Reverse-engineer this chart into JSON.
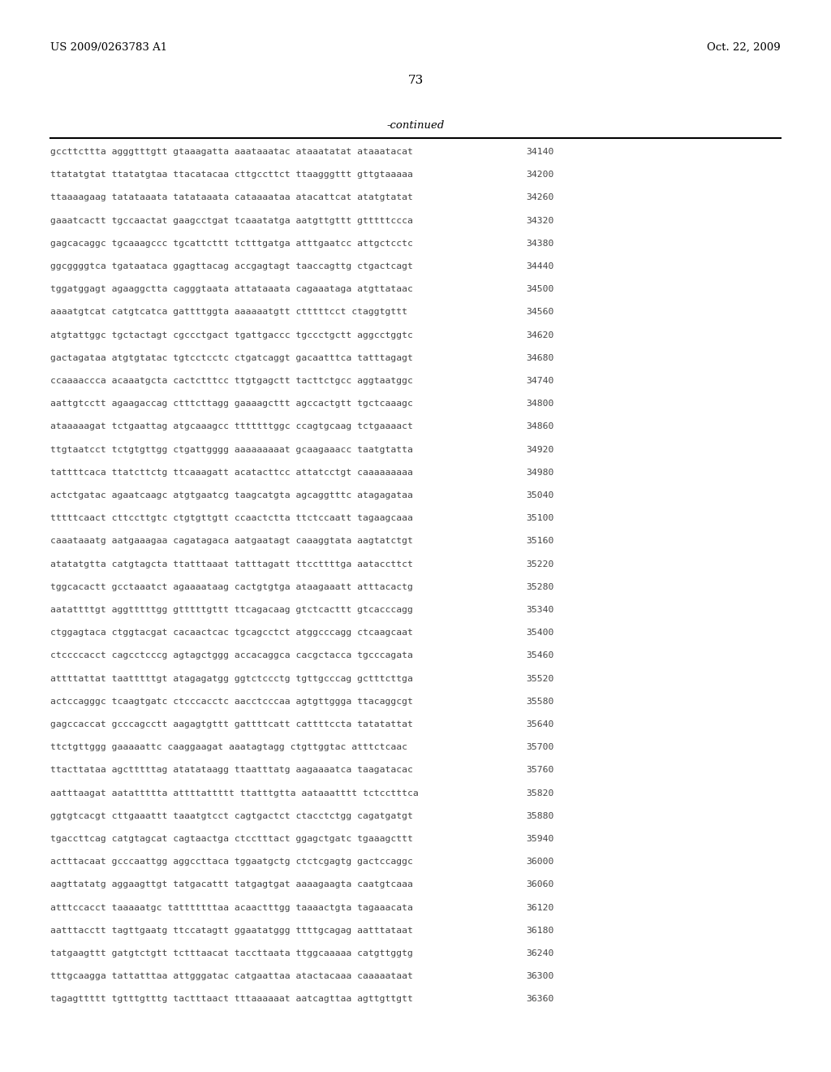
{
  "patent_number": "US 2009/0263783 A1",
  "date": "Oct. 22, 2009",
  "page_number": "73",
  "continued_label": "-continued",
  "background_color": "#ffffff",
  "text_color": "#000000",
  "sequence_color": "#444444",
  "sequence_lines": [
    [
      "gccttcttta agggtttgtt gtaaagatta aaataaatac ataaatatat ataaatacat",
      "34140"
    ],
    [
      "ttatatgtat ttatatgtaa ttacatacaa cttgccttct ttaagggttt gttgtaaaaa",
      "34200"
    ],
    [
      "ttaaaagaag tatataaata tatataaata cataaaataa atacattcat atatgtatat",
      "34260"
    ],
    [
      "gaaatcactt tgccaactat gaagcctgat tcaaatatga aatgttgttt gtttttccca",
      "34320"
    ],
    [
      "gagcacaggc tgcaaagccc tgcattcttt tctttgatga atttgaatcc attgctcctc",
      "34380"
    ],
    [
      "ggcggggtca tgataataca ggagttacag accgagtagt taaccagttg ctgactcagt",
      "34440"
    ],
    [
      "tggatggagt agaaggctta cagggtaata attataaata cagaaataga atgttataac",
      "34500"
    ],
    [
      "aaaatgtcat catgtcatca gattttggta aaaaaatgtt ctttttcct ctaggtgttt",
      "34560"
    ],
    [
      "atgtattggc tgctactagt cgccctgact tgattgaccc tgccctgctt aggcctggtc",
      "34620"
    ],
    [
      "gactagataa atgtgtatac tgtcctcctc ctgatcaggt gacaatttca tatttagagt",
      "34680"
    ],
    [
      "ccaaaaccca acaaatgcta cactctttcc ttgtgagctt tacttctgcc aggtaatggc",
      "34740"
    ],
    [
      "aattgtcctt agaagaccag ctttcttagg gaaaagcttt agccactgtt tgctcaaagc",
      "34800"
    ],
    [
      "ataaaaagat tctgaattag atgcaaagcc tttttttggc ccagtgcaag tctgaaaact",
      "34860"
    ],
    [
      "ttgtaatcct tctgtgttgg ctgattgggg aaaaaaaaat gcaagaaacc taatgtatta",
      "34920"
    ],
    [
      "tattttcaca ttatcttctg ttcaaagatt acatacttcc attatcctgt caaaaaaaaa",
      "34980"
    ],
    [
      "actctgatac agaatcaagc atgtgaatcg taagcatgta agcaggtttc atagagataa",
      "35040"
    ],
    [
      "tttttcaact cttccttgtc ctgtgttgtt ccaactctta ttctccaatt tagaagcaaa",
      "35100"
    ],
    [
      "caaataaatg aatgaaagaa cagatagaca aatgaatagt caaaggtata aagtatctgt",
      "35160"
    ],
    [
      "atatatgtta catgtagcta ttatttaaat tatttagatt ttccttttga aataccttct",
      "35220"
    ],
    [
      "tggcacactt gcctaaatct agaaaataag cactgtgtga ataagaaatt atttacactg",
      "35280"
    ],
    [
      "aatattttgt aggtttttgg gtttttgttt ttcagacaag gtctcacttt gtcacccagg",
      "35340"
    ],
    [
      "ctggagtaca ctggtacgat cacaactcac tgcagcctct atggcccagg ctcaagcaat",
      "35400"
    ],
    [
      "ctccccacct cagcctcccg agtagctggg accacaggca cacgctacca tgcccagata",
      "35460"
    ],
    [
      "attttattat taatttttgt atagagatgg ggtctccctg tgttgcccag gctttcttga",
      "35520"
    ],
    [
      "actccagggc tcaagtgatc ctcccacctc aacctcccaa agtgttggga ttacaggcgt",
      "35580"
    ],
    [
      "gagccaccat gcccagcctt aagagtgttt gattttcatt cattttccta tatatattat",
      "35640"
    ],
    [
      "ttctgttggg gaaaaattc caaggaagat aaatagtagg ctgttggtac atttctcaac",
      "35700"
    ],
    [
      "ttacttataa agctttttag atatataagg ttaatttatg aagaaaatca taagatacac",
      "35760"
    ],
    [
      "aatttaagat aatattttta attttattttt ttatttgtta aataaatttt tctcctttca",
      "35820"
    ],
    [
      "ggtgtcacgt cttgaaattt taaatgtcct cagtgactct ctacctctgg cagatgatgt",
      "35880"
    ],
    [
      "tgaccttcag catgtagcat cagtaactga ctcctttact ggagctgatc tgaaagcttt",
      "35940"
    ],
    [
      "actttacaat gcccaattgg aggccttaca tggaatgctg ctctcgagtg gactccaggc",
      "36000"
    ],
    [
      "aagttatatg aggaagttgt tatgacattt tatgagtgat aaaagaagta caatgtcaaa",
      "36060"
    ],
    [
      "atttccacct taaaaatgc tatttttttaa acaactttgg taaaactgta tagaaacata",
      "36120"
    ],
    [
      "aatttacctt tagttgaatg ttccatagtt ggaatatggg ttttgcagag aatttataat",
      "36180"
    ],
    [
      "tatgaagttt gatgtctgtt tctttaacat taccttaata ttggcaaaaa catgttggtg",
      "36240"
    ],
    [
      "tttgcaagga tattatttaa attgggatac catgaattaa atactacaaa caaaaataat",
      "36300"
    ],
    [
      "tagagttttt tgtttgtttg tactttaact tttaaaaaat aatcagttaa agttgttgtt",
      "36360"
    ]
  ]
}
